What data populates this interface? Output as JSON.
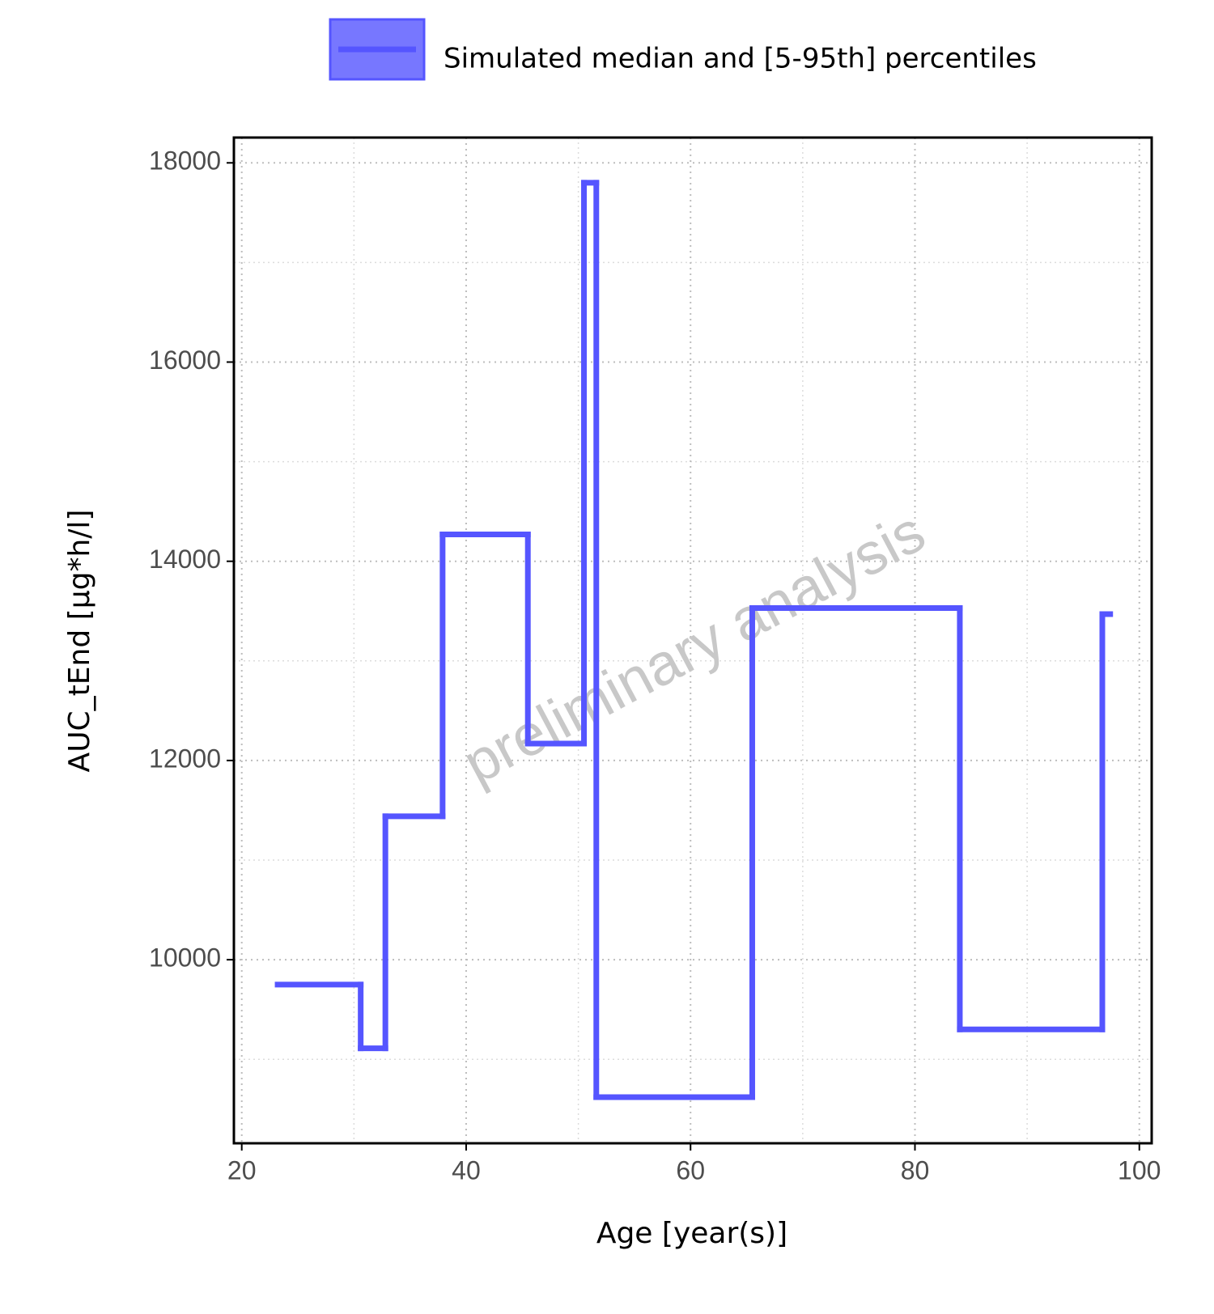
{
  "chart_data": {
    "type": "step",
    "x_label": "Age [year(s)]",
    "y_label": "AUC_tEnd [µg*h/l]",
    "watermark": "preliminary analysis",
    "x": [
      23.2,
      30.6,
      32.8,
      37.9,
      45.5,
      50.5,
      51.6,
      65.5,
      84.0,
      96.7,
      97.4
    ],
    "series": [
      {
        "name": "Simulated median and [5-95th] percentiles",
        "color": "#5555ff",
        "values": [
          9750,
          9110,
          11440,
          14270,
          12170,
          17800,
          8620,
          13530,
          9300,
          13470,
          13470
        ]
      }
    ],
    "xlim": [
      19.3,
      101.1
    ],
    "xticks": [
      20,
      40,
      60,
      80,
      100
    ],
    "ylim": [
      8157,
      18254
    ],
    "yticks": [
      10000,
      12000,
      14000,
      16000,
      18000
    ],
    "grid": true,
    "legend_position": "top"
  }
}
